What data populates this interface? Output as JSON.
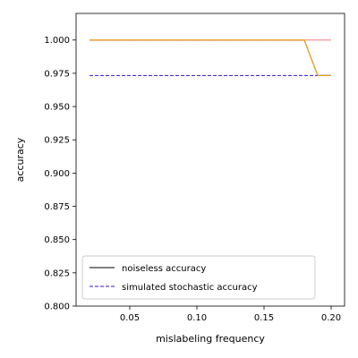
{
  "chart_data": {
    "type": "line",
    "xlabel": "mislabeling frequency",
    "ylabel": "accuracy",
    "xlim": [
      0.01,
      0.21
    ],
    "ylim": [
      0.8,
      1.02
    ],
    "x_ticks": [
      0.05,
      0.1,
      0.15,
      0.2
    ],
    "x_tick_labels": [
      "0.05",
      "0.10",
      "0.15",
      "0.20"
    ],
    "y_ticks": [
      0.8,
      0.825,
      0.85,
      0.875,
      0.9,
      0.925,
      0.95,
      0.975,
      1.0
    ],
    "y_tick_labels": [
      "0.800",
      "0.825",
      "0.850",
      "0.875",
      "0.900",
      "0.925",
      "0.950",
      "0.975",
      "1.000"
    ],
    "grid": false,
    "legend_placement": "lower-left",
    "x": [
      0.02,
      0.03,
      0.04,
      0.05,
      0.06,
      0.07,
      0.08,
      0.09,
      0.1,
      0.11,
      0.12,
      0.13,
      0.14,
      0.15,
      0.16,
      0.17,
      0.18,
      0.19,
      0.2
    ],
    "series": [
      {
        "name": "noiseless accuracy",
        "color": "#000000",
        "style": "solid",
        "values": [
          1.0,
          1.0,
          1.0,
          1.0,
          1.0,
          1.0,
          1.0,
          1.0,
          1.0,
          1.0,
          1.0,
          1.0,
          1.0,
          1.0,
          1.0,
          1.0,
          1.0,
          0.9733,
          0.9733
        ]
      },
      {
        "name": "simulated stochastic accuracy",
        "color": "#3b0fd0",
        "style": "dashed",
        "values": [
          0.9733,
          0.9733,
          0.9733,
          0.9733,
          0.9733,
          0.9733,
          0.9733,
          0.9733,
          0.9733,
          0.9733,
          0.9733,
          0.9733,
          0.9733,
          0.9733,
          0.9733,
          0.9733,
          0.9733,
          0.9733,
          0.9733
        ]
      },
      {
        "color": "#8e0fa3",
        "style": "dashed",
        "values": [
          1.0,
          1.0,
          1.0,
          1.0,
          1.0,
          1.0,
          1.0,
          1.0,
          1.0,
          1.0,
          1.0,
          1.0,
          1.0,
          1.0,
          1.0,
          1.0,
          1.0,
          0.9733,
          0.9733
        ]
      },
      {
        "color": "#f07a7a",
        "style": "solid",
        "values": [
          1.0,
          1.0,
          1.0,
          1.0,
          1.0,
          1.0,
          1.0,
          1.0,
          1.0,
          1.0,
          1.0,
          1.0,
          1.0,
          1.0,
          1.0,
          1.0,
          1.0,
          1.0,
          1.0
        ]
      },
      {
        "color": "#f5b400",
        "style": "solid",
        "values": [
          1.0,
          1.0,
          1.0,
          1.0,
          1.0,
          1.0,
          1.0,
          1.0,
          1.0,
          1.0,
          1.0,
          1.0,
          1.0,
          1.0,
          1.0,
          1.0,
          1.0,
          0.9733,
          0.9733
        ]
      }
    ]
  }
}
